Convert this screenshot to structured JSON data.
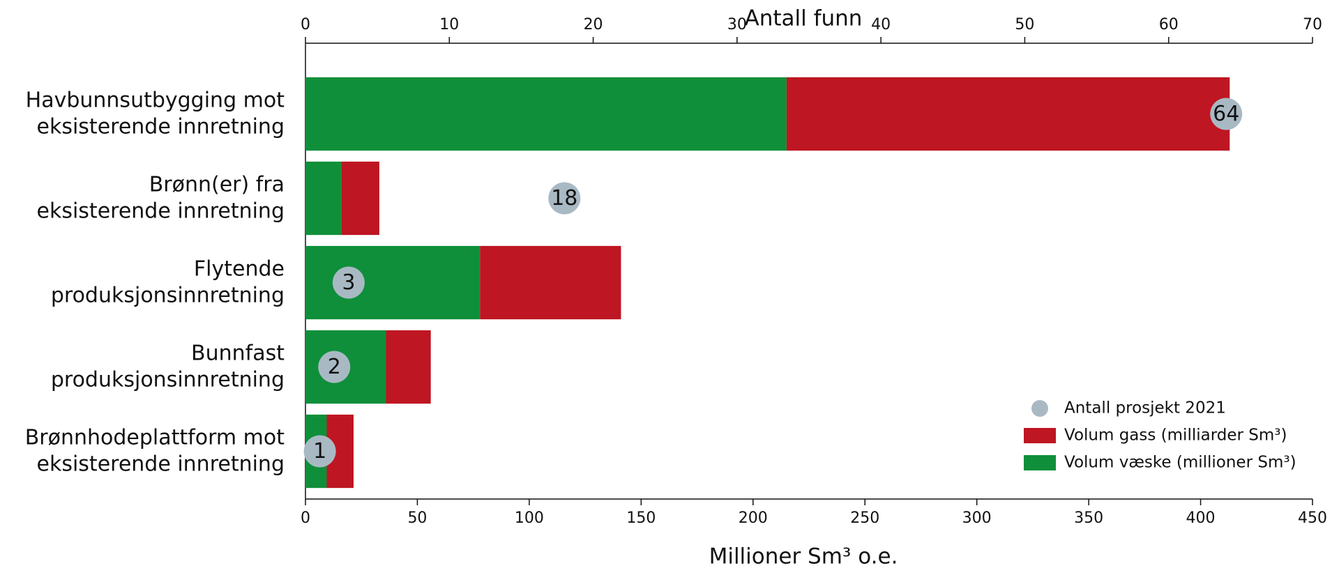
{
  "chart_data": {
    "type": "bar",
    "orientation": "horizontal",
    "stacked": true,
    "categories": [
      "Havbunnsutbygging mot\neksisterende innretning",
      "Brønn(er) fra\neksisterende innretning",
      "Flytende\nproduksjonsinnretning",
      "Bunnfast\nproduksjonsinnretning",
      "Brønnhodeplattform mot\neksisterende innretning"
    ],
    "series": [
      {
        "name": "Volum væske (millioner Sm³)",
        "color": "#0f8f3a",
        "values": [
          215,
          16,
          78,
          36,
          9.5
        ]
      },
      {
        "name": "Volum gass (milliarder Sm³)",
        "color": "#be1622",
        "values": [
          198,
          17,
          63,
          20,
          12
        ]
      },
      {
        "name": "Antall prosjekt 2021",
        "color": "#a9b9c4",
        "type": "scatter",
        "axis": "x2",
        "values": [
          64,
          18,
          3,
          2,
          1
        ]
      }
    ],
    "xlabel": "Millioner Sm³ o.e.",
    "xlim": [
      0,
      450
    ],
    "xticks": [
      0,
      50,
      100,
      150,
      200,
      250,
      300,
      350,
      400,
      450
    ],
    "x2label": "Antall funn",
    "x2lim": [
      0,
      70
    ],
    "x2ticks": [
      0,
      10,
      20,
      30,
      40,
      50,
      60,
      70
    ],
    "legend": "lower right",
    "grid": false
  }
}
